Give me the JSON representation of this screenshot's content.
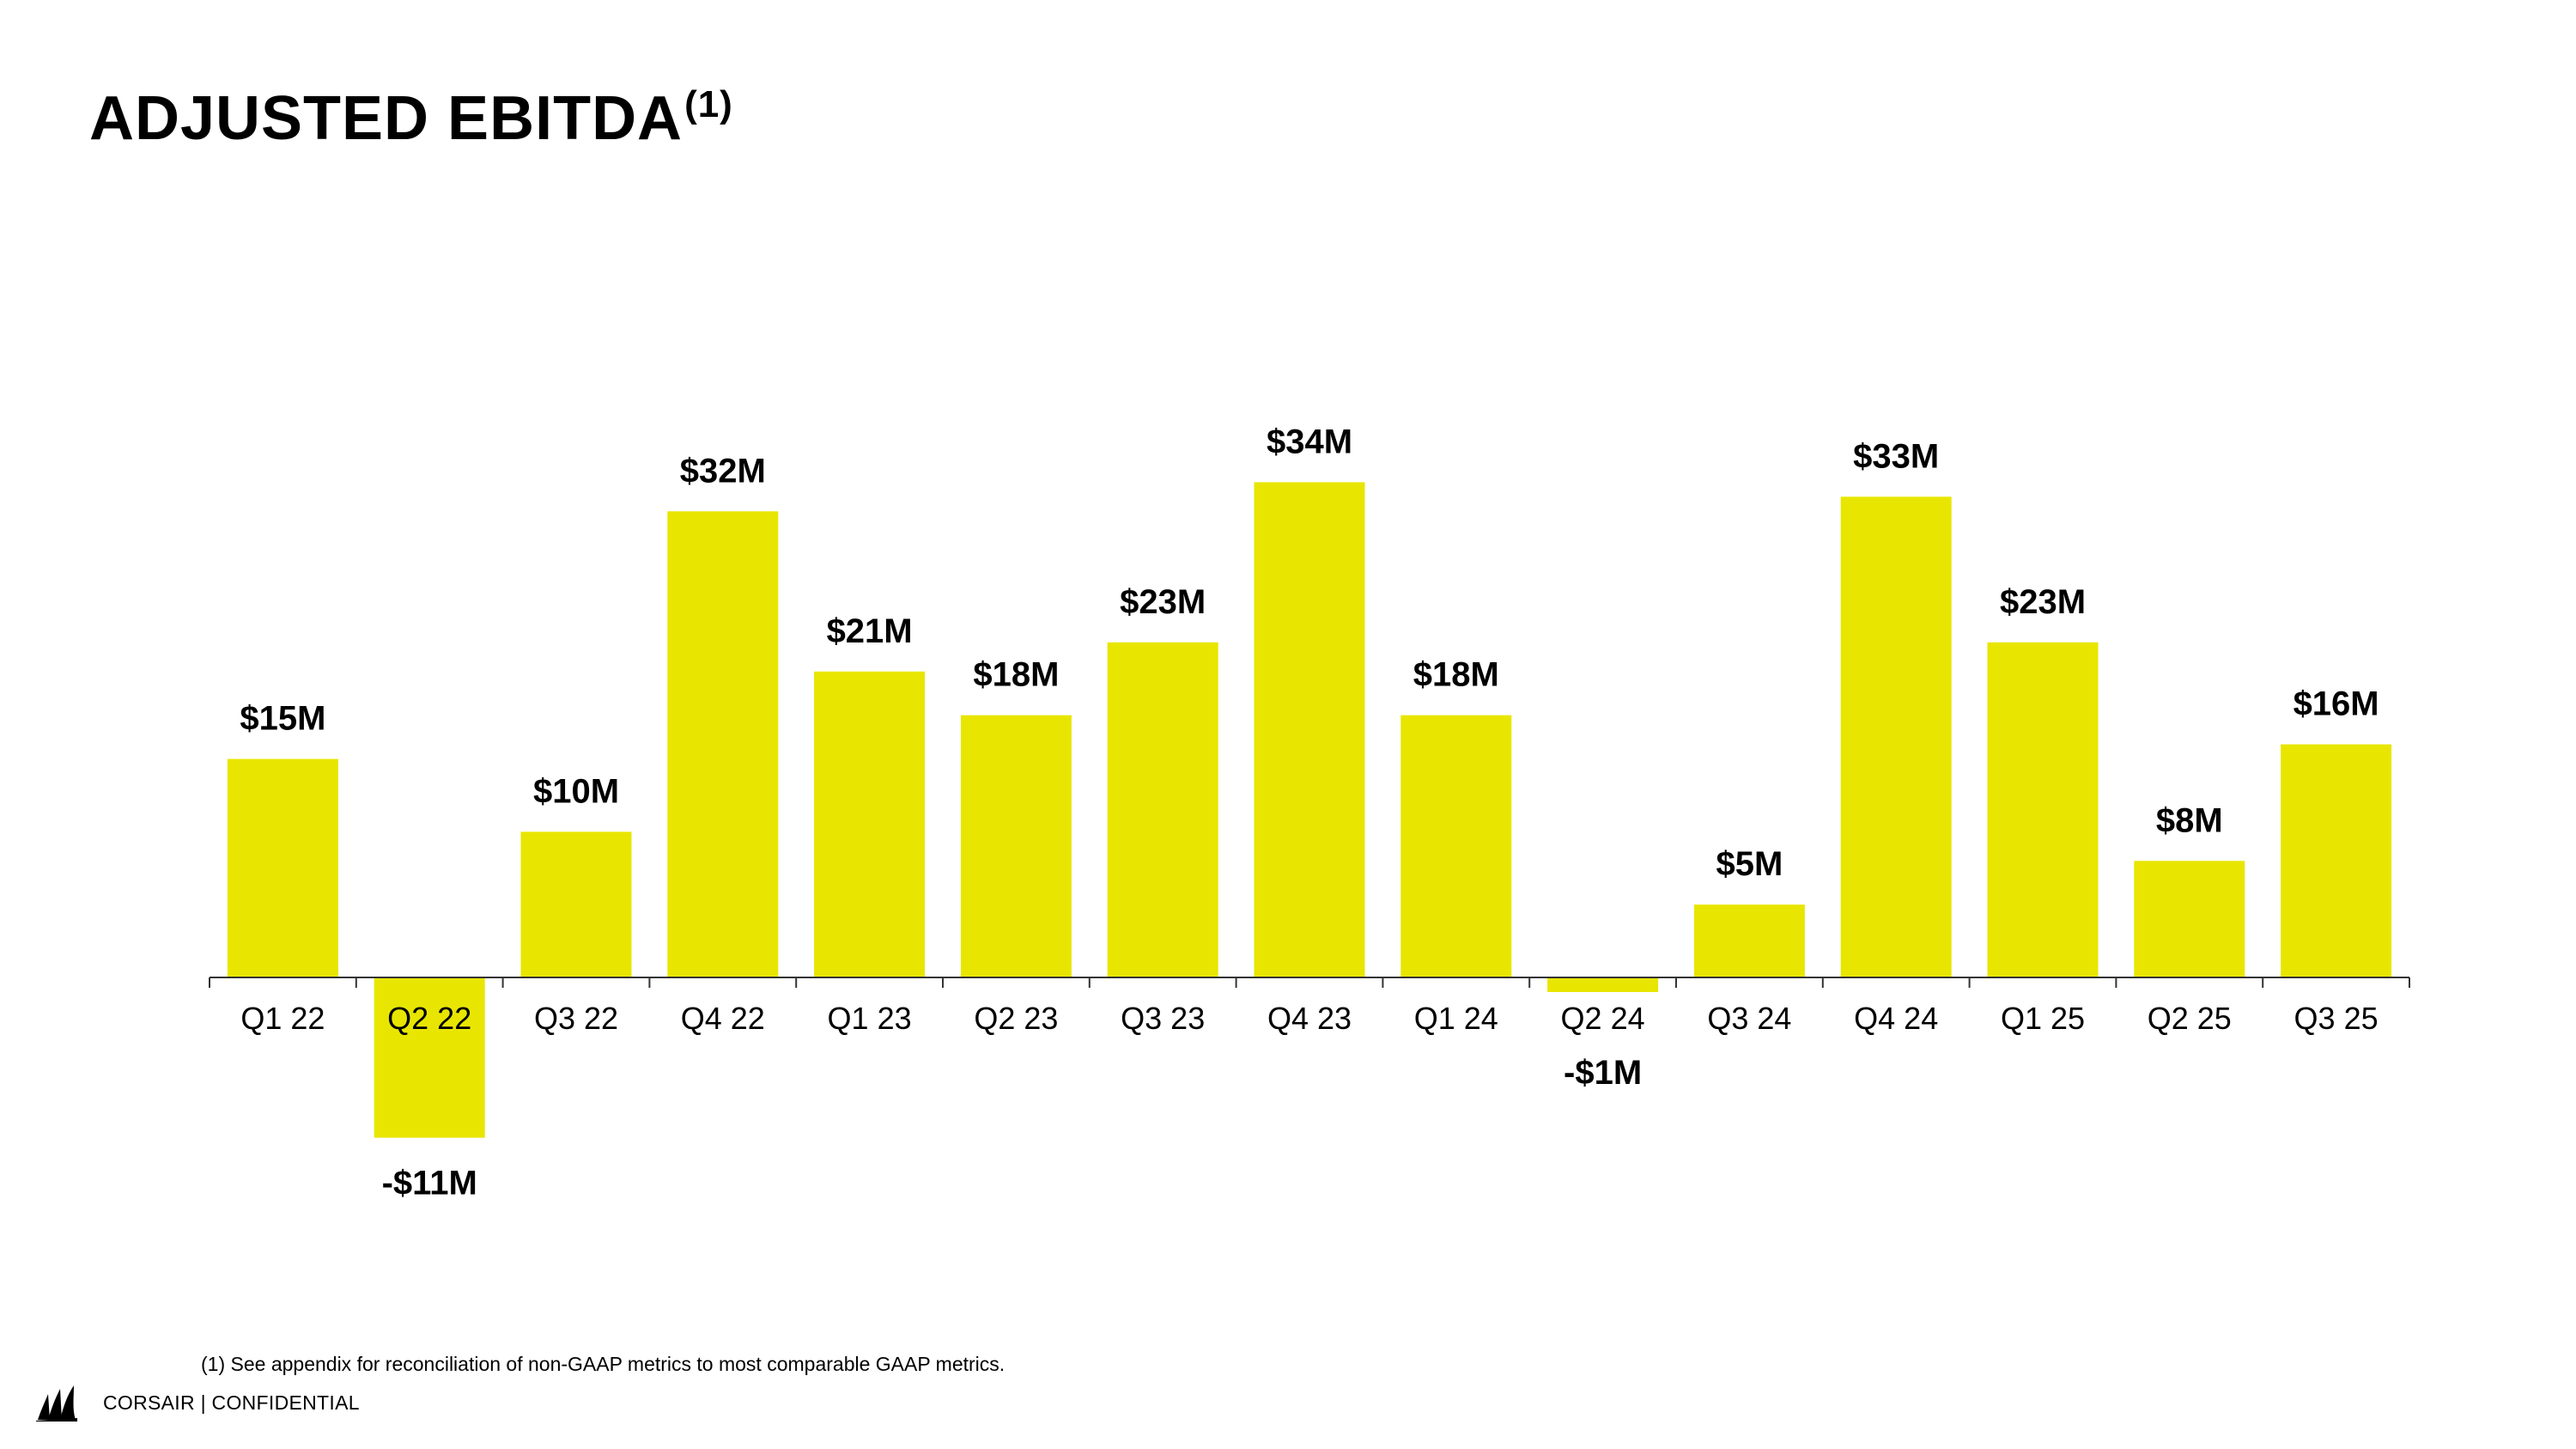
{
  "title": {
    "text": "ADJUSTED EBITDA",
    "superscript": "(1)"
  },
  "footnote": "(1) See appendix for reconciliation of non-GAAP metrics to most comparable GAAP metrics.",
  "brand": {
    "logo_icon": "corsair-sails-icon",
    "text": "CORSAIR | CONFIDENTIAL"
  },
  "colors": {
    "bar": "#E8E600",
    "axis": "#333333",
    "text": "#000000"
  },
  "chart_data": {
    "type": "bar",
    "title": "ADJUSTED EBITDA(1)",
    "xlabel": "",
    "ylabel": "",
    "unit": "$M",
    "grid": false,
    "legend": "none",
    "ylim": [
      -11,
      34
    ],
    "categories": [
      "Q1 22",
      "Q2 22",
      "Q3 22",
      "Q4 22",
      "Q1 23",
      "Q2 23",
      "Q3 23",
      "Q4 23",
      "Q1 24",
      "Q2 24",
      "Q3 24",
      "Q4 24",
      "Q1 25",
      "Q2 25",
      "Q3 25"
    ],
    "values": [
      15,
      -11,
      10,
      32,
      21,
      18,
      23,
      34,
      18,
      -1,
      5,
      33,
      23,
      8,
      16
    ],
    "labels": [
      "$15M",
      "-$11M",
      "$10M",
      "$32M",
      "$21M",
      "$18M",
      "$23M",
      "$34M",
      "$18M",
      "-$1M",
      "$5M",
      "$33M",
      "$23M",
      "$8M",
      "$16M"
    ]
  }
}
